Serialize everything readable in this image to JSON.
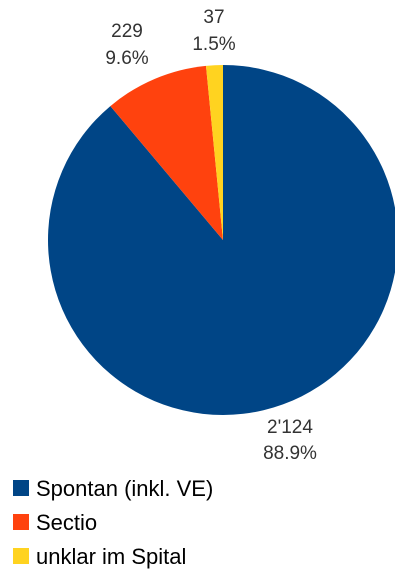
{
  "chart_data": {
    "type": "pie",
    "slices": [
      {
        "label": "Spontan (inkl. VE)",
        "value": 2124,
        "value_label": "2'124",
        "percent_label": "88.9%",
        "color": "#004586"
      },
      {
        "label": "Sectio",
        "value": 229,
        "value_label": "229",
        "percent_label": "9.6%",
        "color": "#ff420e"
      },
      {
        "label": "unklar im Spital",
        "value": 37,
        "value_label": "37",
        "percent_label": "1.5%",
        "color": "#ffd320"
      }
    ],
    "start_angle": "12 o'clock",
    "direction": "clockwise",
    "legend_position": "bottom-left"
  }
}
